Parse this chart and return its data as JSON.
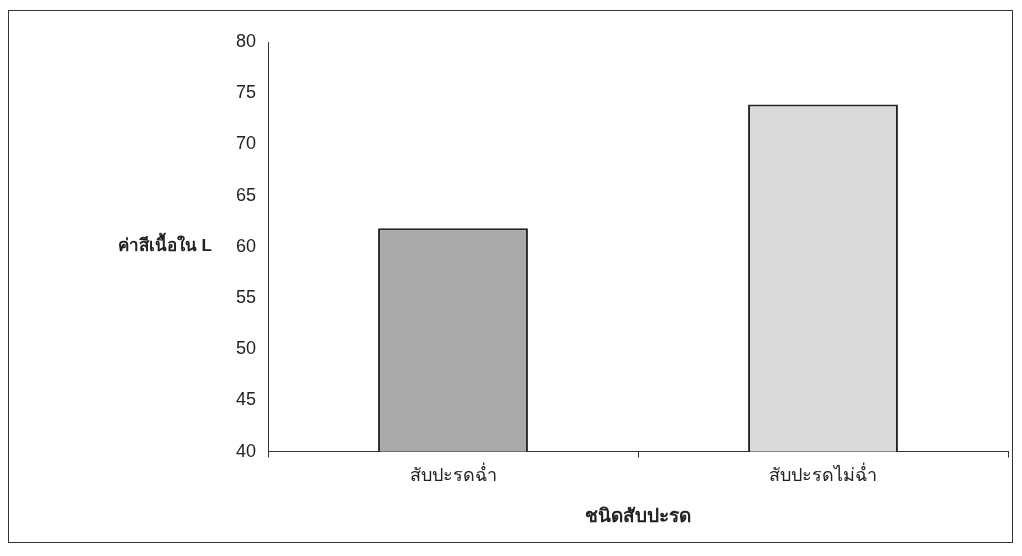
{
  "chart_data": {
    "type": "bar",
    "xlabel": "ชนิดสับปะรด",
    "ylabel": "ค่าสีเนื้อใน L",
    "categories": [
      "สับปะรดฉ่ำ",
      "สับปะรดไม่ฉ่ำ"
    ],
    "values": [
      61.8,
      73.9
    ],
    "colors": [
      "#a9a9a9",
      "#d9d9d9"
    ],
    "ylim": [
      40,
      80
    ],
    "yticks": [
      40,
      45,
      50,
      55,
      60,
      65,
      70,
      75,
      80
    ],
    "grid": false,
    "legend": false
  }
}
